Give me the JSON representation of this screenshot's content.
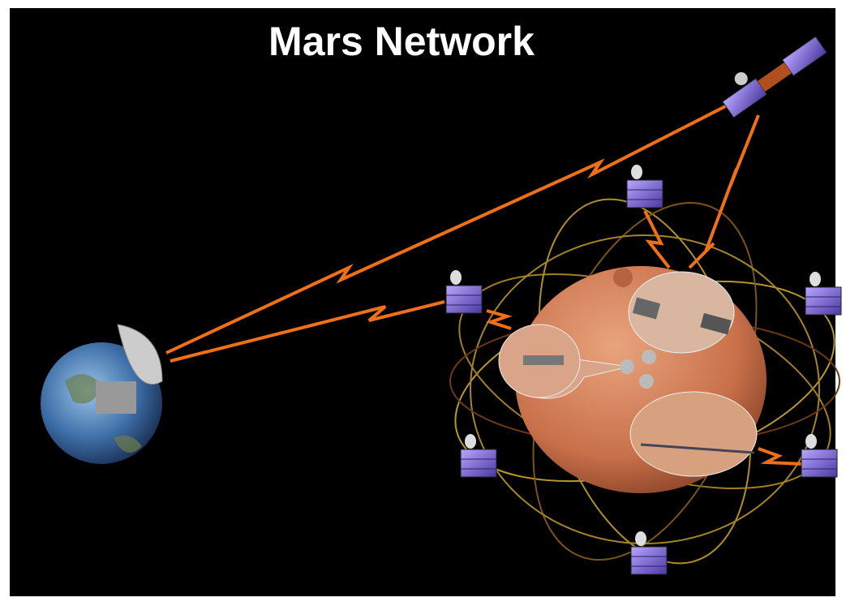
{
  "title": "Mars Network"
}
